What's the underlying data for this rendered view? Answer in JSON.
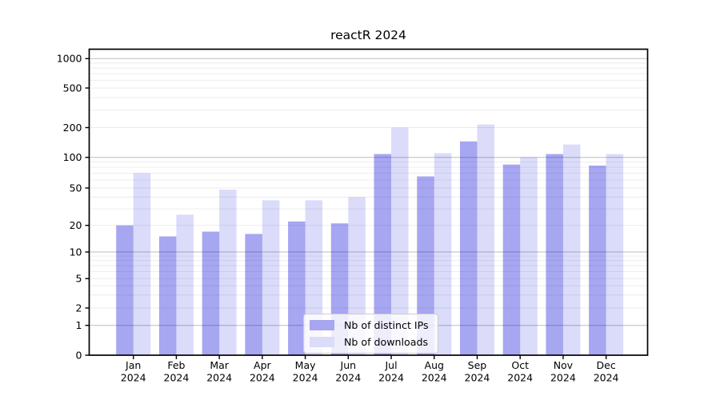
{
  "figure": {
    "title": "reactR 2024"
  },
  "chart_data": {
    "type": "bar",
    "title": "reactR 2024",
    "categories": [
      "Jan",
      "Feb",
      "Mar",
      "Apr",
      "May",
      "Jun",
      "Jul",
      "Aug",
      "Sep",
      "Oct",
      "Nov",
      "Dec"
    ],
    "x_year_label": "2024",
    "series": [
      {
        "name": "Nb of distinct IPs",
        "values": [
          20,
          15,
          17,
          16,
          22,
          21,
          108,
          65,
          145,
          85,
          108,
          83
        ],
        "color": "rgba(0,0,215,0.35)",
        "swatch": "#a6a6f1"
      },
      {
        "name": "Nb of downloads",
        "values": [
          70,
          26,
          48,
          37,
          37,
          40,
          200,
          110,
          215,
          100,
          135,
          108
        ],
        "color": "rgba(0,0,220,0.14)",
        "swatch": "#dbdbfa"
      }
    ],
    "y_tick_labels": [
      "0",
      "1",
      "2",
      "5",
      "10",
      "20",
      "50",
      "100",
      "200",
      "500",
      "1000"
    ],
    "y_ticks": [
      0,
      1,
      2,
      5,
      10,
      20,
      50,
      100,
      200,
      500,
      1000
    ],
    "y_scale": "log-like with 0 baseline",
    "ylim": [
      0,
      1300
    ],
    "grid": "horizontal, log minor + decade major",
    "legend_position": "lower center",
    "axis_color": "#000000",
    "major_grid_color": "#bdbdbd",
    "minor_grid_color": "#ebebeb"
  }
}
